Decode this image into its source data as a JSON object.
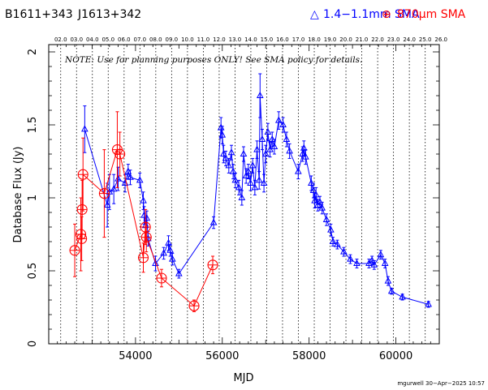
{
  "header": {
    "source_name": "B1611+343",
    "alt_name": "J1613+342",
    "legend": [
      {
        "symbol": "△",
        "label": "1.4−1.1mm SMA",
        "color": "#0000ff"
      },
      {
        "symbol": "⊕",
        "label": "870μm SMA",
        "color": "#ff0000"
      }
    ]
  },
  "note": "NOTE: Use for planning purposes ONLY!  See SMA policy for details.",
  "credit": "mgurwell 30−Apr−2025 10:57",
  "chart_data": {
    "type": "scatter",
    "title": "",
    "xlabel": "MJD",
    "ylabel": "Database Flux (Jy)",
    "xlim": [
      52000,
      61000
    ],
    "ylim": [
      0,
      2.05
    ],
    "x_ticks": [
      54000,
      56000,
      58000,
      60000
    ],
    "y_ticks": [
      0,
      0.5,
      1,
      1.5,
      2
    ],
    "y_tick_labels": [
      "0",
      "0.5",
      "1",
      "1.5",
      "2"
    ],
    "top_axis_labels": [
      "02.0",
      "03.0",
      "04.0",
      "05.0",
      "06.0",
      "07.0",
      "08.0",
      "09.0",
      "10.0",
      "11.0",
      "12.0",
      "13.0",
      "14.0",
      "15.0",
      "16.0",
      "17.0",
      "18.0",
      "19.0",
      "20.0",
      "21.0",
      "22.0",
      "23.0",
      "24.0",
      "25.0",
      "26.0"
    ],
    "top_axis_mjd": [
      52276,
      52641,
      53006,
      53371,
      53737,
      54102,
      54467,
      54832,
      55197,
      55563,
      55928,
      56293,
      56658,
      57023,
      57388,
      57754,
      58119,
      58484,
      58849,
      59215,
      59580,
      59945,
      60310,
      60676,
      61041
    ],
    "series": [
      {
        "name": "1.4−1.1mm SMA",
        "color": "#0000ff",
        "marker": "triangle",
        "points": [
          [
            52830,
            1.47,
            0.16
          ],
          [
            53350,
            0.95,
            0.15
          ],
          [
            53400,
            1.04,
            0.12
          ],
          [
            53500,
            1.06,
            0.1
          ],
          [
            53600,
            1.13,
            0.08
          ],
          [
            53760,
            1.1,
            0.06
          ],
          [
            53830,
            1.18,
            0.05
          ],
          [
            53880,
            1.14,
            0.05
          ],
          [
            54100,
            1.12,
            0.05
          ],
          [
            54180,
            0.98,
            0.06
          ],
          [
            54200,
            0.88,
            0.06
          ],
          [
            54230,
            0.81,
            0.05
          ],
          [
            54260,
            0.86,
            0.05
          ],
          [
            54290,
            0.72,
            0.05
          ],
          [
            54460,
            0.55,
            0.05
          ],
          [
            54650,
            0.62,
            0.04
          ],
          [
            54760,
            0.69,
            0.05
          ],
          [
            54800,
            0.64,
            0.04
          ],
          [
            54850,
            0.58,
            0.04
          ],
          [
            55000,
            0.48,
            0.03
          ],
          [
            55800,
            0.83,
            0.04
          ],
          [
            55970,
            1.48,
            0.07
          ],
          [
            56000,
            1.43,
            0.06
          ],
          [
            56030,
            1.3,
            0.06
          ],
          [
            56080,
            1.27,
            0.05
          ],
          [
            56150,
            1.22,
            0.05
          ],
          [
            56210,
            1.31,
            0.05
          ],
          [
            56250,
            1.18,
            0.05
          ],
          [
            56300,
            1.12,
            0.05
          ],
          [
            56380,
            1.07,
            0.05
          ],
          [
            56450,
            1.0,
            0.05
          ],
          [
            56490,
            1.3,
            0.05
          ],
          [
            56550,
            1.15,
            0.05
          ],
          [
            56600,
            1.18,
            0.05
          ],
          [
            56650,
            1.1,
            0.05
          ],
          [
            56700,
            1.22,
            0.05
          ],
          [
            56750,
            1.07,
            0.05
          ],
          [
            56800,
            1.33,
            0.06
          ],
          [
            56850,
            1.12,
            0.06
          ],
          [
            56870,
            1.7,
            0.15
          ],
          [
            56920,
            1.4,
            0.07
          ],
          [
            56960,
            1.1,
            0.06
          ],
          [
            57000,
            1.3,
            0.06
          ],
          [
            57050,
            1.45,
            0.06
          ],
          [
            57100,
            1.33,
            0.05
          ],
          [
            57150,
            1.4,
            0.05
          ],
          [
            57200,
            1.35,
            0.05
          ],
          [
            57300,
            1.53,
            0.06
          ],
          [
            57400,
            1.5,
            0.05
          ],
          [
            57480,
            1.4,
            0.05
          ],
          [
            57550,
            1.32,
            0.05
          ],
          [
            57750,
            1.18,
            0.05
          ],
          [
            57850,
            1.3,
            0.05
          ],
          [
            57880,
            1.34,
            0.05
          ],
          [
            57920,
            1.28,
            0.05
          ],
          [
            58050,
            1.1,
            0.05
          ],
          [
            58100,
            1.05,
            0.05
          ],
          [
            58130,
            0.98,
            0.05
          ],
          [
            58160,
            1.02,
            0.05
          ],
          [
            58200,
            0.95,
            0.04
          ],
          [
            58250,
            0.97,
            0.04
          ],
          [
            58300,
            0.93,
            0.04
          ],
          [
            58400,
            0.85,
            0.04
          ],
          [
            58500,
            0.78,
            0.04
          ],
          [
            58550,
            0.7,
            0.03
          ],
          [
            58650,
            0.68,
            0.03
          ],
          [
            58800,
            0.63,
            0.03
          ],
          [
            58950,
            0.58,
            0.03
          ],
          [
            59100,
            0.55,
            0.03
          ],
          [
            59380,
            0.55,
            0.03
          ],
          [
            59450,
            0.57,
            0.03
          ],
          [
            59500,
            0.54,
            0.03
          ],
          [
            59650,
            0.61,
            0.03
          ],
          [
            59750,
            0.55,
            0.03
          ],
          [
            59820,
            0.43,
            0.03
          ],
          [
            59900,
            0.36,
            0.02
          ],
          [
            60150,
            0.32,
            0.02
          ],
          [
            60750,
            0.27,
            0.02
          ]
        ]
      },
      {
        "name": "870μm SMA",
        "color": "#ff0000",
        "marker": "circle-plus",
        "points": [
          [
            52600,
            0.64,
            0.18
          ],
          [
            52740,
            0.75,
            0.25
          ],
          [
            52760,
            0.72,
            0.15
          ],
          [
            52770,
            0.92,
            0.2
          ],
          [
            52790,
            1.16,
            0.25
          ],
          [
            53280,
            1.03,
            0.3
          ],
          [
            53580,
            1.33,
            0.26
          ],
          [
            53640,
            1.3,
            0.15
          ],
          [
            54180,
            0.59,
            0.1
          ],
          [
            54230,
            0.8,
            0.12
          ],
          [
            54250,
            0.73,
            0.1
          ],
          [
            54600,
            0.45,
            0.06
          ],
          [
            55350,
            0.26,
            0.04
          ],
          [
            55780,
            0.54,
            0.06
          ]
        ]
      }
    ]
  }
}
